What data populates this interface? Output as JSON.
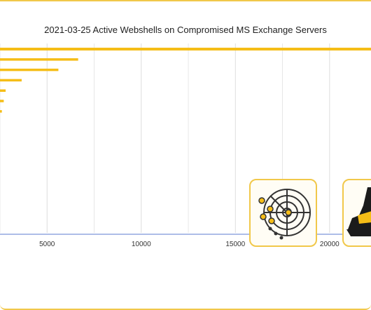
{
  "chart_data": {
    "type": "bar",
    "orientation": "horizontal",
    "title": "2021-03-25 Active Webshells on Compromised MS Exchange Servers",
    "xlabel": "",
    "ylabel": "",
    "x_ticks": [
      5000,
      10000,
      15000,
      20000
    ],
    "xlim": [
      2500,
      22200
    ],
    "grid": true,
    "colors": {
      "bar": "#f5bd17",
      "grid": "#dddddd",
      "axis": "#5b7bd0",
      "frame": "#f1c84a",
      "icon": "#f5bd17"
    },
    "series": [
      {
        "values": [
          22200,
          6650,
          5600,
          3650,
          2800,
          2700,
          2600
        ]
      }
    ]
  },
  "icons": {
    "radar": "radar-icon",
    "hacker": "hacker-icon"
  }
}
